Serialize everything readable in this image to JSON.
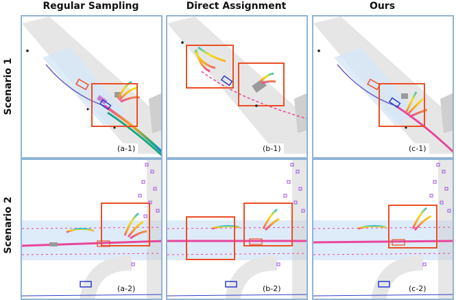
{
  "columns": [
    "Regular Sampling",
    "Direct Assignment",
    "Ours"
  ],
  "rows": [
    "Scenario 1",
    "Scenario 2"
  ],
  "labels": {
    "a1": "(a-1)",
    "b1": "(b-1)",
    "c1": "(c-1)",
    "a2": "(a-2)",
    "b2": "(b-2)",
    "c2": "(c-2)"
  },
  "colors": {
    "frame": "#8fb3d6",
    "highlight_box": "#ea4e24",
    "road": "#dcdcdc",
    "lane_band": "#d6e6f7",
    "ego_path": "#e8459a",
    "agents": "#9b4fe3"
  }
}
